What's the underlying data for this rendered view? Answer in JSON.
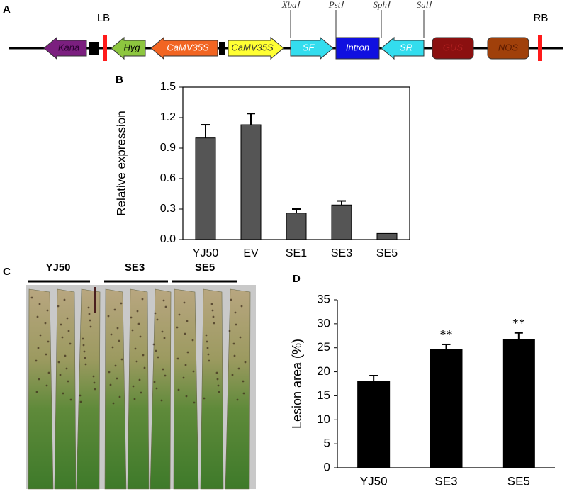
{
  "panel_labels": [
    "A",
    "B",
    "C",
    "D"
  ],
  "construct": {
    "borders": [
      "LB",
      "RB"
    ],
    "elements": [
      "Kana",
      "Hyg",
      "CaMV35S",
      "CaMV35S",
      "SF",
      "Intron",
      "SR",
      "GUS",
      "NOS"
    ],
    "sites": [
      "XbaⅠ",
      "PstⅠ",
      "SphⅠ",
      "SalⅠ"
    ]
  },
  "photo": {
    "group_labels": [
      "YJ50",
      "SE3",
      "SE5"
    ]
  },
  "chart_data": [
    {
      "type": "bar",
      "y_label": "Relative expression",
      "categories": [
        "YJ50",
        "EV",
        "SE1",
        "SE3",
        "SE5"
      ],
      "values": [
        1.0,
        1.13,
        0.26,
        0.34,
        0.06
      ],
      "errors": [
        0.13,
        0.11,
        0.04,
        0.04,
        0
      ],
      "color": "#555555",
      "ylim": [
        0,
        1.5
      ],
      "yticks": [
        {
          "value": 0,
          "label": "0.0"
        },
        0.3,
        0.6,
        0.9,
        1.2,
        1.5
      ]
    },
    {
      "type": "bar",
      "y_label": "Lesion area (%)",
      "categories": [
        "YJ50",
        "SE3",
        "SE5"
      ],
      "values": [
        18.0,
        24.6,
        26.8
      ],
      "errors": [
        1.2,
        1.1,
        1.3
      ],
      "significance": [
        null,
        "**",
        "**"
      ],
      "color": "#000000",
      "ylim": [
        0,
        35
      ],
      "yticks": [
        0,
        5,
        10,
        15,
        20,
        25,
        30,
        35
      ]
    }
  ]
}
